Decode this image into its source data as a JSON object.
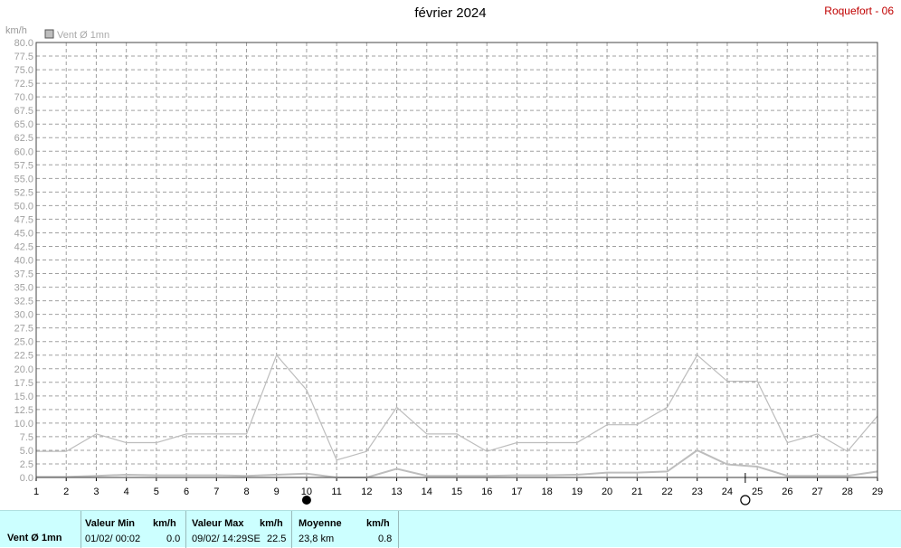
{
  "header": {
    "title": "février 2024",
    "station": "Roquefort - 06"
  },
  "chart_data": {
    "type": "line",
    "yunit": "km/h",
    "ylim": [
      0,
      80
    ],
    "yticks": [
      "0.0",
      "2.5",
      "5.0",
      "7.5",
      "10.0",
      "12.5",
      "15.0",
      "17.5",
      "20.0",
      "22.5",
      "25.0",
      "27.5",
      "30.0",
      "32.5",
      "35.0",
      "37.5",
      "40.0",
      "42.5",
      "45.0",
      "47.5",
      "50.0",
      "52.5",
      "55.0",
      "57.5",
      "60.0",
      "62.5",
      "65.0",
      "67.5",
      "70.0",
      "72.5",
      "75.0",
      "77.5",
      "80.0"
    ],
    "x": [
      1,
      2,
      3,
      4,
      5,
      6,
      7,
      8,
      9,
      10,
      11,
      12,
      13,
      14,
      15,
      16,
      17,
      18,
      19,
      20,
      21,
      22,
      23,
      24,
      25,
      26,
      27,
      28,
      29
    ],
    "legend": "Vent Ø 1mn",
    "grid": true,
    "series": [
      {
        "name": "max",
        "color": "#bdbdbd",
        "values": [
          4.8,
          4.8,
          8.0,
          6.4,
          6.4,
          8.0,
          8.0,
          8.0,
          22.5,
          16.1,
          3.2,
          4.8,
          12.9,
          8.0,
          8.0,
          4.8,
          6.4,
          6.4,
          6.4,
          9.7,
          9.7,
          12.9,
          22.5,
          17.7,
          17.7,
          6.4,
          8.0,
          4.8,
          11.3
        ]
      },
      {
        "name": "moyenne",
        "color": "#bdbdbd",
        "values": [
          0.1,
          0.1,
          0.3,
          0.5,
          0.4,
          0.4,
          0.4,
          0.3,
          0.5,
          0.7,
          0.0,
          0.0,
          1.6,
          0.3,
          0.3,
          0.3,
          0.4,
          0.4,
          0.5,
          0.9,
          0.9,
          1.1,
          5.0,
          2.4,
          2.0,
          0.3,
          0.3,
          0.3,
          1.1
        ]
      },
      {
        "name": "min",
        "color": "#cccccc",
        "values": [
          0,
          0,
          0,
          0,
          0,
          0,
          0,
          0,
          0,
          0,
          0,
          0,
          0,
          0,
          0,
          0,
          0,
          0,
          0,
          0,
          0,
          0,
          0,
          0,
          0,
          0,
          0,
          0,
          0
        ]
      }
    ],
    "moon": [
      {
        "phase": "new",
        "x": 10
      },
      {
        "phase": "full",
        "x": 24.6
      }
    ],
    "marker_x": 24.6
  },
  "footer": {
    "series_label": "Vent Ø 1mn",
    "min_header": "Valeur Min",
    "min_unit": "km/h",
    "min_date": "01/02/  00:02",
    "min_value": "0.0",
    "max_header": "Valeur Max",
    "max_unit": "km/h",
    "max_date": "09/02/  14:29SE",
    "max_value": "22.5",
    "avg_header": "Moyenne",
    "avg_unit": "km/h",
    "avg_run": "23,8 km",
    "avg_value": "0.8"
  }
}
